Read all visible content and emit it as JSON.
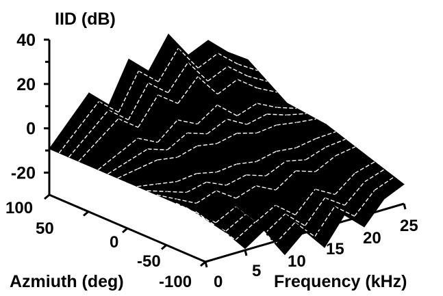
{
  "chart_data": {
    "type": "surface",
    "zlabel": "IID  (dB)",
    "xlabel": "Frequency  (kHz)",
    "ylabel": "Azmiuth  (deg)",
    "z_ticks": [
      "40",
      "20",
      "0",
      "-20"
    ],
    "z_tick_values": [
      40,
      20,
      0,
      -20
    ],
    "x_ticks": [
      "0",
      "5",
      "10",
      "15",
      "20",
      "25"
    ],
    "x_tick_values": [
      0,
      5,
      10,
      15,
      20,
      25
    ],
    "y_ticks": [
      "100",
      "50",
      "0",
      "-50",
      "-100"
    ],
    "y_tick_values": [
      100,
      50,
      0,
      -50,
      -100
    ],
    "xlim": [
      0,
      25
    ],
    "ylim": [
      -100,
      100
    ],
    "zlim": [
      -30,
      40
    ],
    "surface": {
      "frequency_khz": [
        0,
        2.5,
        5,
        7.5,
        10,
        12.5,
        15,
        17.5,
        20,
        22.5,
        25
      ],
      "azimuth_deg": [
        100,
        50,
        0,
        -50,
        -100
      ],
      "iid_db": [
        [
          0,
          10,
          20,
          12,
          30,
          22,
          36,
          24,
          28,
          20,
          14
        ],
        [
          0,
          6,
          12,
          6,
          16,
          10,
          18,
          8,
          12,
          6,
          2
        ],
        [
          0,
          0,
          0,
          0,
          0,
          0,
          0,
          0,
          0,
          0,
          0
        ],
        [
          0,
          -6,
          -12,
          -8,
          -16,
          -12,
          -18,
          -10,
          -14,
          -8,
          -6
        ],
        [
          0,
          -10,
          -20,
          -14,
          -28,
          -20,
          -30,
          -18,
          -26,
          -16,
          -12
        ]
      ]
    },
    "surface_color": "#000000",
    "mesh_color": "#ffffff",
    "grid": false
  }
}
